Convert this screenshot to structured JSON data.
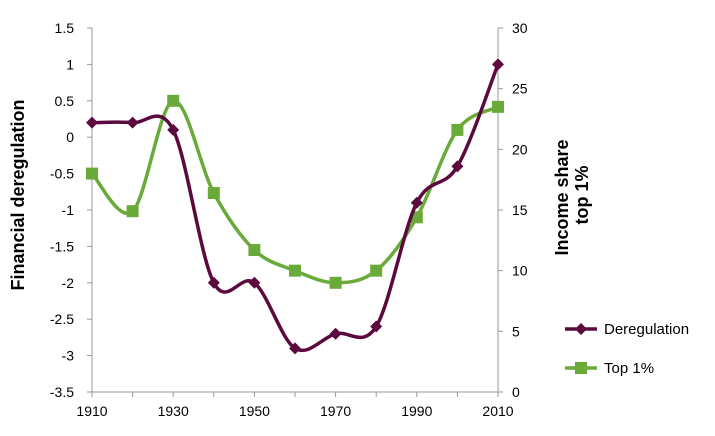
{
  "chart_data": {
    "type": "line",
    "x": [
      1910,
      1920,
      1930,
      1940,
      1950,
      1960,
      1970,
      1980,
      1990,
      2000,
      2010
    ],
    "xlim": [
      1910,
      2010
    ],
    "xticks": [
      "1910",
      "1930",
      "1950",
      "1970",
      "1990",
      "2010"
    ],
    "xtick_values": [
      1910,
      1930,
      1950,
      1970,
      1990,
      2010
    ],
    "ylabel_left": "Financial deregulation",
    "ylabel_right_lines": [
      "Income share",
      "top 1%"
    ],
    "ylim_left": [
      -3.5,
      1.5
    ],
    "yticks_left": [
      "-3.5",
      "-3",
      "-2.5",
      "-2",
      "-1.5",
      "-1",
      "-0.5",
      "0",
      "0.5",
      "1",
      "1.5"
    ],
    "yticks_left_values": [
      -3.5,
      -3,
      -2.5,
      -2,
      -1.5,
      -1,
      -0.5,
      0,
      0.5,
      1,
      1.5
    ],
    "ylim_right": [
      0,
      30
    ],
    "yticks_right": [
      "0",
      "5",
      "10",
      "15",
      "20",
      "25",
      "30"
    ],
    "yticks_right_values": [
      0,
      5,
      10,
      15,
      20,
      25,
      30
    ],
    "grid": false,
    "legend_position": "bottom-right",
    "series": [
      {
        "name": "Deregulation",
        "axis": "left",
        "color": "#5c0a3e",
        "marker": "diamond",
        "values": [
          0.2,
          0.2,
          0.1,
          -2.0,
          -2.0,
          -2.9,
          -2.7,
          -2.6,
          -0.9,
          -0.4,
          1.0
        ]
      },
      {
        "name": "Top 1%",
        "axis": "right",
        "color": "#6aaa3a",
        "marker": "square",
        "values": [
          18.0,
          14.9,
          24.0,
          16.4,
          11.7,
          10.0,
          9.0,
          10.0,
          14.4,
          21.6,
          23.5
        ]
      }
    ]
  }
}
